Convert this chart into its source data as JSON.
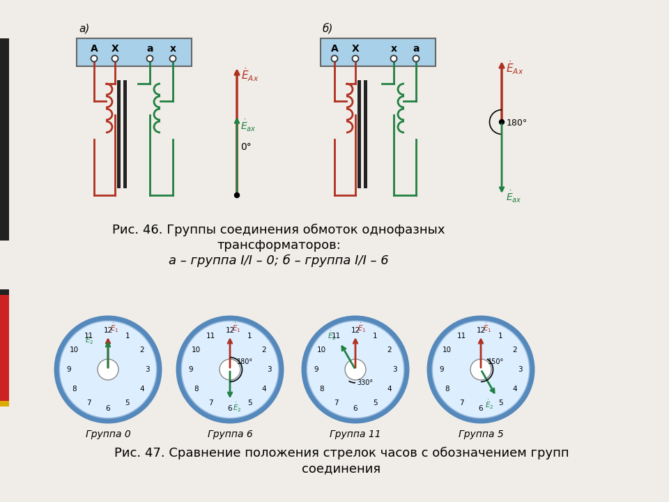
{
  "bg_color": "#f0ede8",
  "caption1_line1": "Рис. 46. Группы соединения обмоток однофазных",
  "caption1_line2": "трансформаторов:",
  "caption1_line3": "а – группа I/I – 0; б – группа I/I – 6",
  "caption2_line1": "Рис. 47. Сравнение положения стрелок часов с обозначением групп",
  "caption2_line2": "соединения",
  "clock_labels": [
    "Группа 0",
    "Группа 6",
    "Группа 11",
    "Группа 5"
  ],
  "clock_groups": [
    0,
    6,
    11,
    5
  ],
  "red_color": "#b03020",
  "green_color": "#208040",
  "blue_box": "#a8d0e8",
  "clock_face_color": "#ddeeff",
  "clock_border_color": "#5588bb",
  "left_bar_dark": "#222222",
  "left_bar_red": "#cc2222",
  "left_bar_yellow": "#ddaa00",
  "left_bar_pink": "#cc4488"
}
